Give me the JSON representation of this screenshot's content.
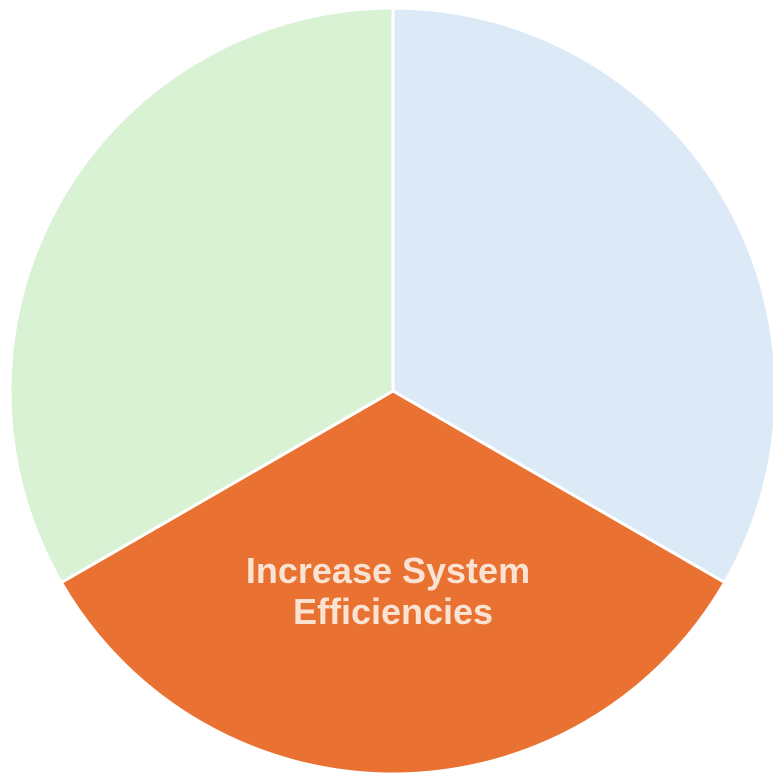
{
  "segments": [
    {
      "id": "top-right",
      "label_lines": [],
      "fill": "#dce9f7",
      "text_color": "#ffffff"
    },
    {
      "id": "bottom",
      "label_lines": [
        "Increase System",
        "Efficiencies"
      ],
      "fill": "#e97233",
      "text_color": "#fbe3d4"
    },
    {
      "id": "top-left",
      "label_lines": [],
      "fill": "#d9f2d4",
      "text_color": "#ffffff"
    }
  ],
  "divider_color": "#ffffff"
}
